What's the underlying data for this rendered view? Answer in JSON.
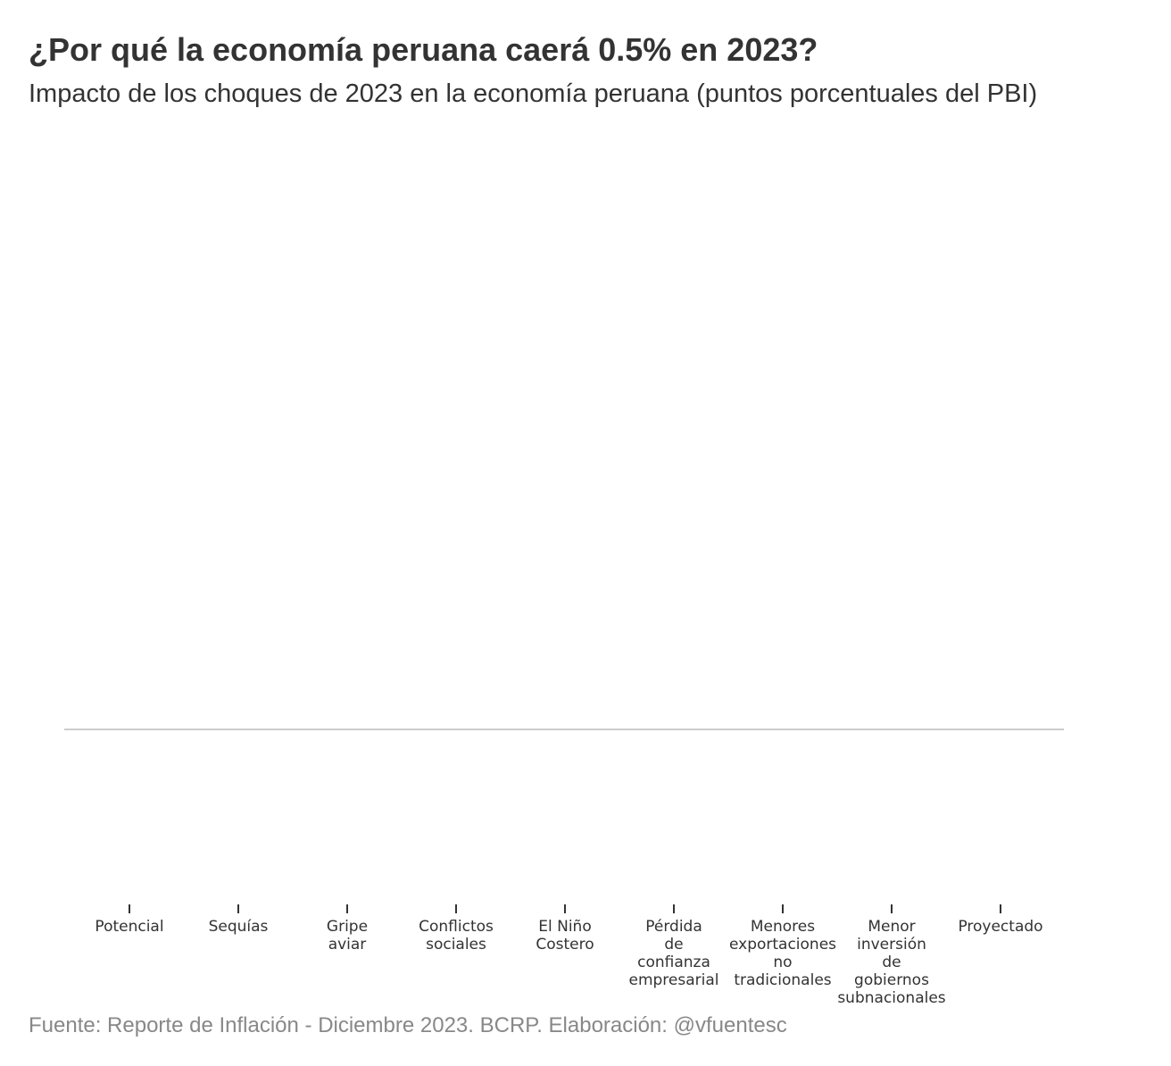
{
  "chart_data": {
    "type": "bar",
    "title": "¿Por qué la economía peruana caerá 0.5% en 2023?",
    "subtitle": "Impacto de los choques de 2023 en la economía peruana (puntos porcentuales del PBI)",
    "source": "Fuente: Reporte de Inflación - Diciembre 2023. BCRP. Elaboración: @vfuentesc",
    "categories": [
      "Potencial",
      "Sequías",
      "Gripe aviar",
      "Conflictos sociales",
      "El Niño Costero",
      "Pérdida de confianza empresarial",
      "Menores exportaciones no tradicionales",
      "Menor inversión de gobiernos subnacionales",
      "Proyectado"
    ]
  }
}
